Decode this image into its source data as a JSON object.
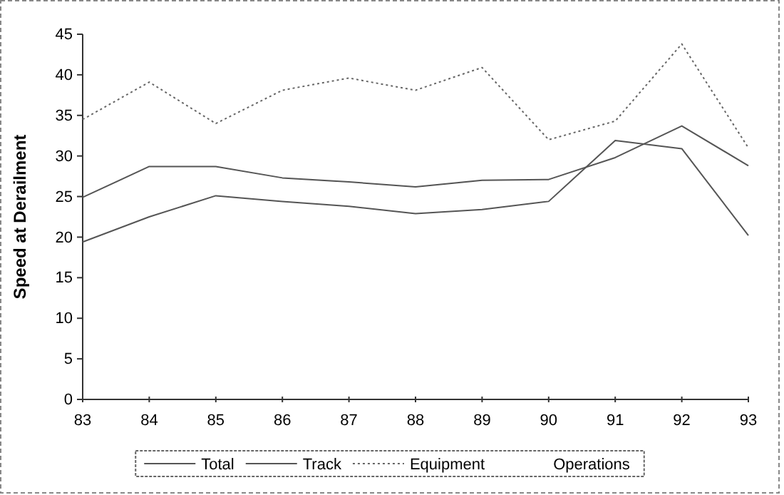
{
  "chart_data": {
    "type": "line",
    "ylabel": "Speed at Derailment",
    "x": [
      83,
      84,
      85,
      86,
      87,
      88,
      89,
      90,
      91,
      92,
      93
    ],
    "xlim": [
      83,
      93
    ],
    "xticks": [
      83,
      84,
      85,
      86,
      87,
      88,
      89,
      90,
      91,
      92,
      93
    ],
    "ylim": [
      0,
      45
    ],
    "yticks": [
      0,
      5,
      10,
      15,
      20,
      25,
      30,
      35,
      40,
      45
    ],
    "grid": false,
    "legend": "bottom",
    "marker": "none",
    "series": [
      {
        "name": "Total",
        "color": "#555555",
        "line_style": "solid",
        "values": [
          24.9,
          28.7,
          28.7,
          27.3,
          26.8,
          26.2,
          27.0,
          27.1,
          29.8,
          33.7,
          28.8
        ]
      },
      {
        "name": "Track",
        "color": "#555555",
        "line_style": "solid",
        "values": [
          19.4,
          22.5,
          25.1,
          24.4,
          23.8,
          22.9,
          23.4,
          24.4,
          31.9,
          30.9,
          20.2
        ]
      },
      {
        "name": "Equipment",
        "color": "#666666",
        "line_style": "dotted",
        "values": [
          34.5,
          39.1,
          34.0,
          38.1,
          39.6,
          38.1,
          40.9,
          32.0,
          34.3,
          43.8,
          31.0
        ]
      },
      {
        "name": "Operations",
        "values": [
          null,
          null,
          null,
          null,
          null,
          null,
          null,
          null,
          null,
          null,
          null
        ]
      }
    ]
  }
}
